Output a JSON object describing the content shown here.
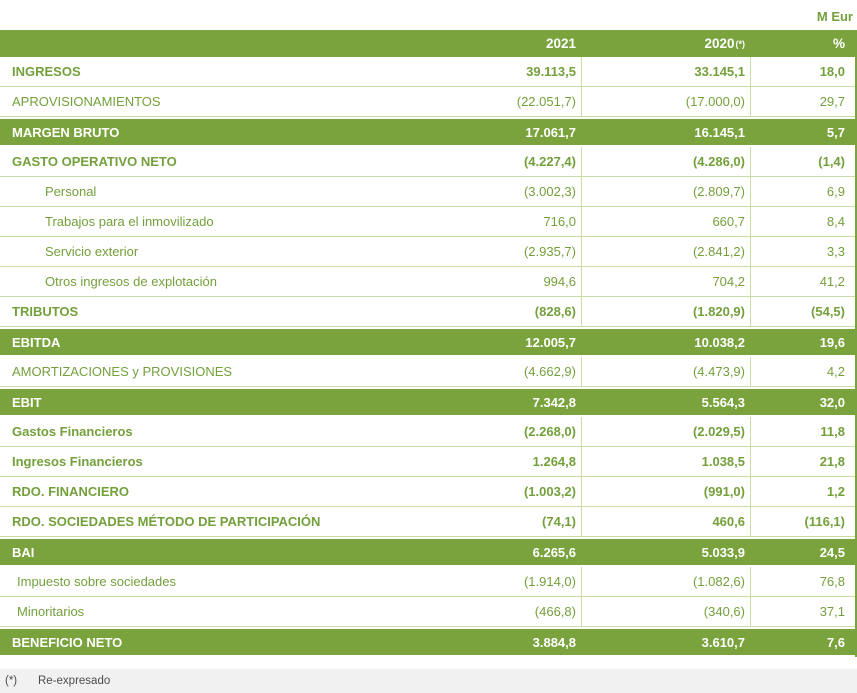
{
  "unit_label": "M Eur",
  "colors": {
    "bar_green": "#7AA33D",
    "text_green": "#74A03C",
    "border_green": "#CBDDA6",
    "footer_gray": "#4D4D4D",
    "footer_bg": "#F1F1F1"
  },
  "table": {
    "columns": {
      "y2021": "2021",
      "y2020": "2020",
      "y2020_sup": "(*)",
      "pct": "%"
    },
    "rows": [
      {
        "label": "INGRESOS",
        "v2021": "39.113,5",
        "v2020": "33.145,1",
        "pct": "18,0",
        "style": "bold"
      },
      {
        "label": "APROVISIONAMIENTOS",
        "v2021": "(22.051,7)",
        "v2020": "(17.000,0)",
        "pct": "29,7",
        "style": "regular"
      },
      {
        "label": "MARGEN BRUTO",
        "v2021": "17.061,7",
        "v2020": "16.145,1",
        "pct": "5,7",
        "style": "bar"
      },
      {
        "label": "GASTO OPERATIVO NETO",
        "v2021": "(4.227,4)",
        "v2020": "(4.286,0)",
        "pct": "(1,4)",
        "style": "bold"
      },
      {
        "label": "Personal",
        "v2021": "(3.002,3)",
        "v2020": "(2.809,7)",
        "pct": "6,9",
        "style": "sub"
      },
      {
        "label": "Trabajos para el inmovilizado",
        "v2021": "716,0",
        "v2020": "660,7",
        "pct": "8,4",
        "style": "sub"
      },
      {
        "label": "Servicio exterior",
        "v2021": "(2.935,7)",
        "v2020": "(2.841,2)",
        "pct": "3,3",
        "style": "sub"
      },
      {
        "label": "Otros ingresos de explotación",
        "v2021": "994,6",
        "v2020": "704,2",
        "pct": "41,2",
        "style": "sub"
      },
      {
        "label": "TRIBUTOS",
        "v2021": "(828,6)",
        "v2020": "(1.820,9)",
        "pct": "(54,5)",
        "style": "bold"
      },
      {
        "label": "EBITDA",
        "v2021": "12.005,7",
        "v2020": "10.038,2",
        "pct": "19,6",
        "style": "bar"
      },
      {
        "label": "AMORTIZACIONES y PROVISIONES",
        "v2021": "(4.662,9)",
        "v2020": "(4.473,9)",
        "pct": "4,2",
        "style": "regular"
      },
      {
        "label": "EBIT",
        "v2021": "7.342,8",
        "v2020": "5.564,3",
        "pct": "32,0",
        "style": "bar"
      },
      {
        "label": "Gastos Financieros",
        "v2021": "(2.268,0)",
        "v2020": "(2.029,5)",
        "pct": "11,8",
        "style": "bold"
      },
      {
        "label": "Ingresos Financieros",
        "v2021": "1.264,8",
        "v2020": "1.038,5",
        "pct": "21,8",
        "style": "bold"
      },
      {
        "label": "RDO. FINANCIERO",
        "v2021": "(1.003,2)",
        "v2020": "(991,0)",
        "pct": "1,2",
        "style": "bold"
      },
      {
        "label": "RDO. SOCIEDADES MÉTODO DE PARTICIPACIÓN",
        "v2021": "(74,1)",
        "v2020": "460,6",
        "pct": "(116,1)",
        "style": "bold"
      },
      {
        "label": "BAI",
        "v2021": "6.265,6",
        "v2020": "5.033,9",
        "pct": "24,5",
        "style": "bar"
      },
      {
        "label": "Impuesto sobre sociedades",
        "v2021": "(1.914,0)",
        "v2020": "(1.082,6)",
        "pct": "76,8",
        "style": "sub2"
      },
      {
        "label": "Minoritarios",
        "v2021": "(466,8)",
        "v2020": "(340,6)",
        "pct": "37,1",
        "style": "sub2"
      },
      {
        "label": "BENEFICIO NETO",
        "v2021": "3.884,8",
        "v2020": "3.610,7",
        "pct": "7,6",
        "style": "bar"
      }
    ]
  },
  "footnote": {
    "marker": "(*)",
    "text": "Re-expresado"
  }
}
